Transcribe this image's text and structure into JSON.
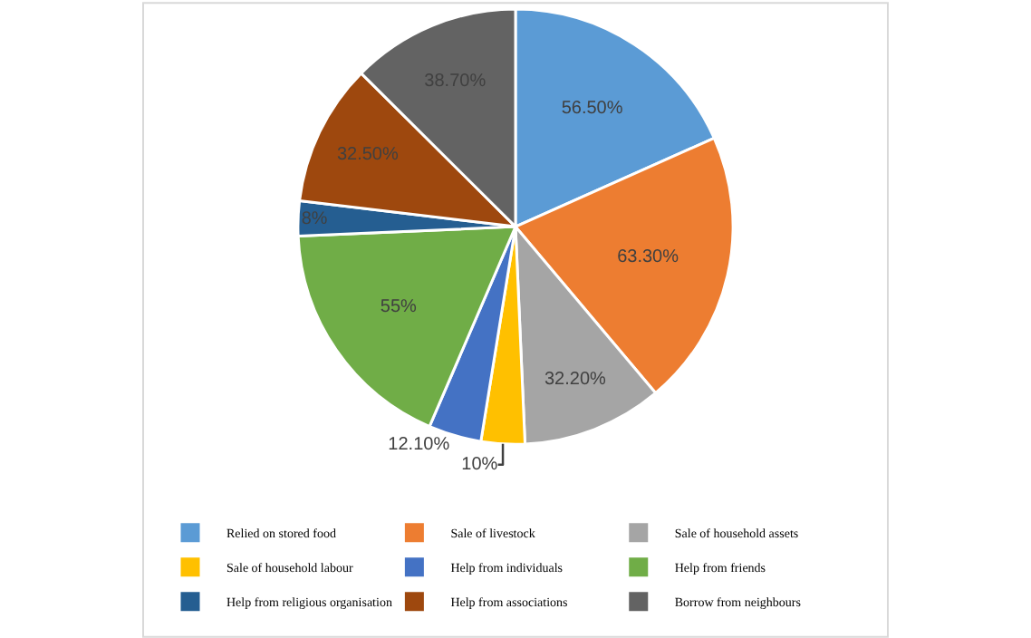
{
  "chart_data": {
    "type": "pie",
    "categories": [
      "Relied on stored food",
      "Sale of livestock",
      "Sale of household assets",
      "Sale of household labour",
      "Help from individuals",
      "Help from friends",
      "Help from religious organisation",
      "Help from associations",
      "Borrow from neighbours"
    ],
    "values": [
      56.5,
      63.3,
      32.2,
      10,
      12.1,
      55,
      8,
      32.5,
      38.7
    ],
    "value_labels": [
      "56.50%",
      "63.30%",
      "32.20%",
      "10%",
      "12.10%",
      "55%",
      "8%",
      "32.50%",
      "38.70%"
    ],
    "colors": [
      "#5b9bd5",
      "#ed7d31",
      "#a5a5a5",
      "#ffc000",
      "#4472c4",
      "#70ad47",
      "#255e91",
      "#9e480e",
      "#636363"
    ],
    "legend": "bottom"
  }
}
